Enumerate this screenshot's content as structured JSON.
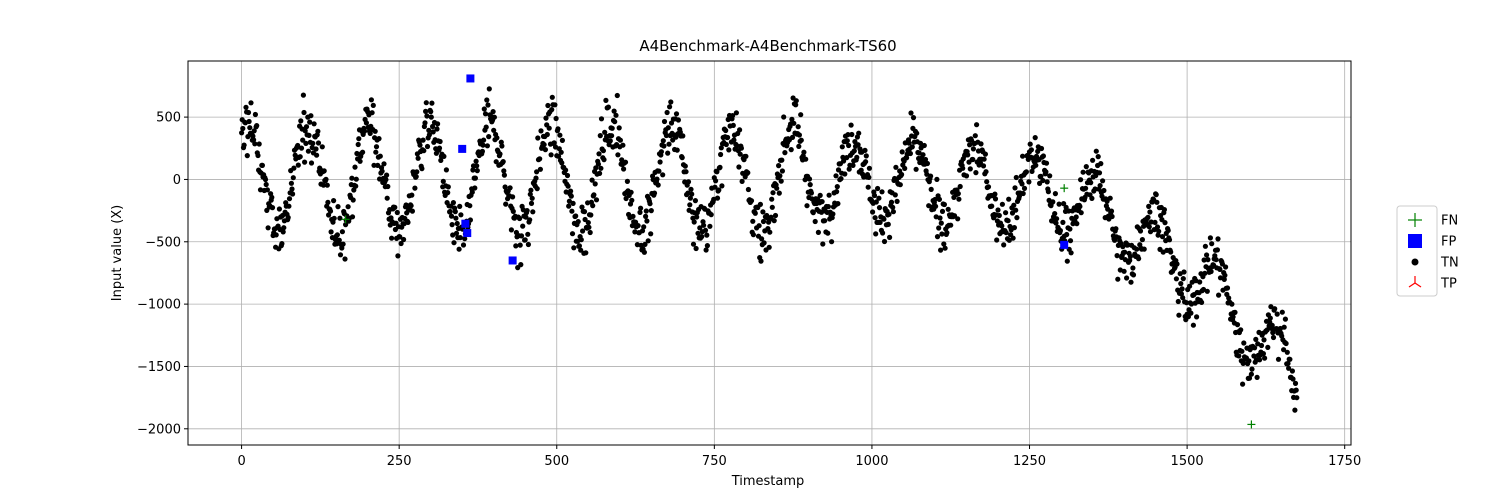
{
  "chart_data": {
    "type": "scatter",
    "title": "A4Benchmark-A4Benchmark-TS60",
    "xlabel": "Timestamp",
    "ylabel": "Input value (X)",
    "xlim": [
      -85,
      1760
    ],
    "ylim": [
      -2130,
      950
    ],
    "xticks": [
      0,
      250,
      500,
      750,
      1000,
      1250,
      1500,
      1750
    ],
    "yticks": [
      -2000,
      -1500,
      -1000,
      -500,
      0,
      500
    ],
    "grid": true,
    "legend_position": "right",
    "colors": {
      "FN": "#008000",
      "FP": "#0000ff",
      "TN": "#000000",
      "TP": "#ff0000"
    },
    "series": [
      {
        "name": "FN",
        "marker": "plus",
        "points": [
          [
            165,
            -320
          ],
          [
            1305,
            -70
          ],
          [
            1602,
            -1965
          ]
        ]
      },
      {
        "name": "FP",
        "marker": "square",
        "points": [
          [
            350,
            245
          ],
          [
            355,
            -355
          ],
          [
            358,
            -430
          ],
          [
            363,
            810
          ],
          [
            430,
            -650
          ],
          [
            1305,
            -525
          ]
        ]
      },
      {
        "name": "TN",
        "marker": "circle",
        "count": 1675,
        "points": []
      },
      {
        "name": "TP",
        "marker": "tri-down",
        "points": []
      }
    ]
  }
}
